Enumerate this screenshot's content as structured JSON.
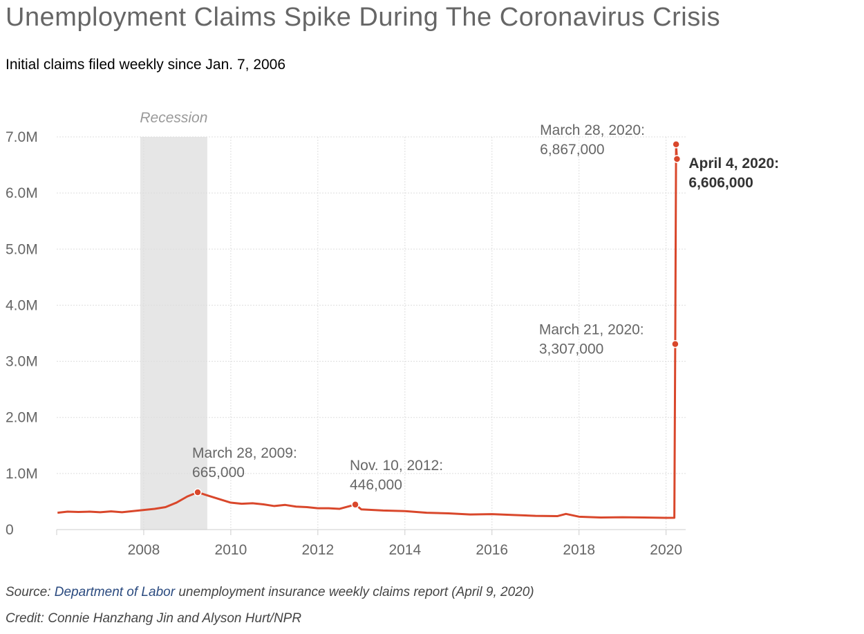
{
  "chart_data": {
    "type": "line",
    "title": "Unemployment Claims Spike During The Coronavirus Crisis",
    "subtitle": "Initial claims filed weekly since Jan. 7, 2006",
    "xlim": [
      2006,
      2020.45
    ],
    "xticks": [
      2008,
      2010,
      2012,
      2014,
      2016,
      2018,
      2020
    ],
    "ylim": [
      0,
      7000000
    ],
    "yticks": [
      0,
      {
        "value": 1000000,
        "label": "1.0M"
      },
      {
        "value": 2000000,
        "label": "2.0M"
      },
      {
        "value": 3000000,
        "label": "3.0M"
      },
      {
        "value": 4000000,
        "label": "4.0M"
      },
      {
        "value": 5000000,
        "label": "5.0M"
      },
      {
        "value": 6000000,
        "label": "6.0M"
      },
      {
        "value": 7000000,
        "label": "7.0M"
      }
    ],
    "grid": true,
    "recession": {
      "label": "Recession",
      "start": 2007.92,
      "end": 2009.46
    },
    "series": [
      {
        "name": "Initial claims",
        "color": "#d9472b",
        "x": [
          2006.02,
          2006.25,
          2006.5,
          2006.75,
          2007.0,
          2007.25,
          2007.5,
          2007.75,
          2008.0,
          2008.25,
          2008.5,
          2008.75,
          2009.0,
          2009.24,
          2009.5,
          2009.75,
          2010.0,
          2010.25,
          2010.5,
          2010.75,
          2011.0,
          2011.25,
          2011.5,
          2011.75,
          2012.0,
          2012.25,
          2012.5,
          2012.86,
          2013.0,
          2013.5,
          2014.0,
          2014.5,
          2015.0,
          2015.5,
          2016.0,
          2016.5,
          2017.0,
          2017.5,
          2017.7,
          2018.0,
          2018.5,
          2019.0,
          2019.5,
          2020.0,
          2020.19,
          2020.21,
          2020.23,
          2020.25
        ],
        "values": [
          300000,
          320000,
          315000,
          320000,
          310000,
          325000,
          310000,
          330000,
          350000,
          370000,
          400000,
          480000,
          590000,
          665000,
          600000,
          540000,
          480000,
          460000,
          470000,
          450000,
          420000,
          440000,
          410000,
          400000,
          380000,
          380000,
          370000,
          446000,
          360000,
          340000,
          330000,
          300000,
          290000,
          270000,
          275000,
          260000,
          245000,
          240000,
          280000,
          230000,
          215000,
          220000,
          215000,
          210000,
          211000,
          3307000,
          6867000,
          6606000
        ]
      }
    ],
    "annotations": [
      {
        "label": "March 28, 2009:",
        "value_label": "665,000",
        "x": 2009.24,
        "y": 665000
      },
      {
        "label": "Nov. 10, 2012:",
        "value_label": "446,000",
        "x": 2012.86,
        "y": 446000
      },
      {
        "label": "March 21, 2020:",
        "value_label": "3,307,000",
        "x": 2020.21,
        "y": 3307000
      },
      {
        "label": "March 28, 2020:",
        "value_label": "6,867,000",
        "x": 2020.23,
        "y": 6867000
      },
      {
        "label": "April 4, 2020:",
        "value_label": "6,606,000",
        "x": 2020.25,
        "y": 6606000
      }
    ],
    "source": {
      "prefix": "Source:",
      "link": "Department of Labor",
      "suffix": "unemployment insurance weekly claims report (April 9, 2020)"
    },
    "credit": "Credit: Connie Hanzhang Jin and Alyson Hurt/NPR"
  }
}
